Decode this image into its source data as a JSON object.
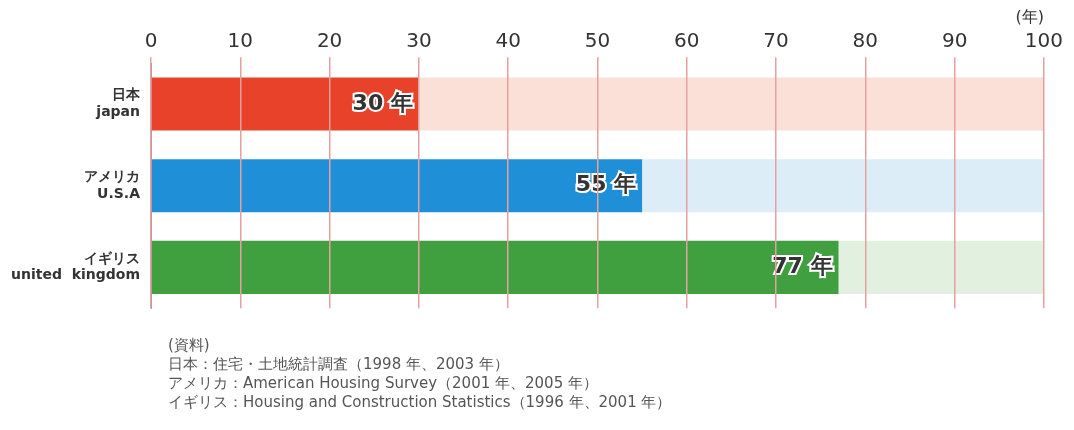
{
  "chart_data": {
    "type": "bar",
    "orientation": "horizontal",
    "stacked": true,
    "categories": [
      "日本\njapan",
      "アメリカ\nU.S.A",
      "イギリス\nunited  kingdom"
    ],
    "series": [
      {
        "colors": [
          "#e8432a",
          "#1f8fd8",
          "#40a040"
        ],
        "values": [
          30,
          55,
          77
        ],
        "value_labels": [
          "30 年",
          "55 年",
          "77 年"
        ]
      },
      {
        "colors": [
          "#fbe0d8",
          "#ddedf8",
          "#e2f0e0"
        ],
        "values": [
          70,
          45,
          23
        ]
      }
    ],
    "xlabel": "(年)",
    "xlim": [
      0,
      100
    ],
    "xticks": [
      0,
      10,
      20,
      30,
      40,
      50,
      60,
      70,
      80,
      90,
      100
    ],
    "grid": "x",
    "legend": false,
    "annotations": [
      "(資料)",
      "日本：住宅・土地統計調査（1998 年、2003 年）",
      "アメリカ：American Housing Survey（2001 年、2005 年）",
      "イギリス：Housing and Construction Statistics（1996 年、2001 年）"
    ]
  }
}
